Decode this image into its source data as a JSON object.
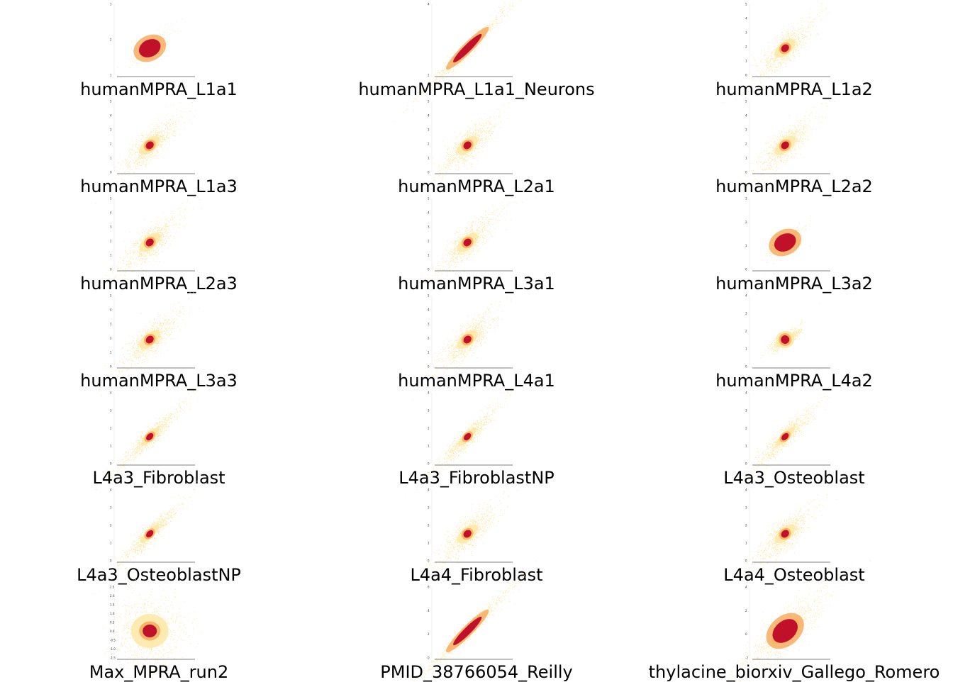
{
  "figure": {
    "colors": {
      "outer": "#fde8a6",
      "mid": "#f6a857",
      "core": "#c0102a",
      "axis": "#222222"
    }
  },
  "chart_data": [
    {
      "type": "scatter",
      "title": "humanMPRA_L1a1",
      "style": "blob",
      "yticks": [
        "1",
        "2",
        "3"
      ]
    },
    {
      "type": "scatter",
      "title": "humanMPRA_L1a1_Neurons",
      "style": "diagonal",
      "yticks": [
        "2",
        "4"
      ]
    },
    {
      "type": "scatter",
      "title": "humanMPRA_L1a2",
      "style": "wide",
      "yticks": [
        "0",
        "1",
        "2",
        "3",
        "4",
        "5"
      ]
    },
    {
      "type": "scatter",
      "title": "humanMPRA_L1a3",
      "style": "wide",
      "yticks": [
        "0",
        "1",
        "2",
        "3",
        "4",
        "5"
      ]
    },
    {
      "type": "scatter",
      "title": "humanMPRA_L2a1",
      "style": "wide",
      "yticks": [
        "0",
        "1",
        "2",
        "3",
        "4",
        "5"
      ]
    },
    {
      "type": "scatter",
      "title": "humanMPRA_L2a2",
      "style": "wide",
      "yticks": [
        "0",
        "1",
        "2",
        "3",
        "4",
        "5"
      ]
    },
    {
      "type": "scatter",
      "title": "humanMPRA_L2a3",
      "style": "wide",
      "yticks": [
        "0",
        "1",
        "2",
        "3",
        "4",
        "5"
      ]
    },
    {
      "type": "scatter",
      "title": "humanMPRA_L3a1",
      "style": "wide",
      "yticks": [
        "0",
        "1",
        "2",
        "3",
        "4",
        "5"
      ]
    },
    {
      "type": "scatter",
      "title": "humanMPRA_L3a2",
      "style": "blob",
      "yticks": [
        "0",
        "1",
        "2",
        "3"
      ]
    },
    {
      "type": "scatter",
      "title": "humanMPRA_L3a3",
      "style": "wide",
      "yticks": [
        "0",
        "1",
        "2",
        "3",
        "4",
        "5"
      ]
    },
    {
      "type": "scatter",
      "title": "humanMPRA_L4a1",
      "style": "wide",
      "yticks": [
        "0",
        "1",
        "2",
        "3",
        "4",
        "5"
      ]
    },
    {
      "type": "scatter",
      "title": "humanMPRA_L4a2",
      "style": "round",
      "yticks": [
        "0",
        "1",
        "2",
        "3",
        "4"
      ]
    },
    {
      "type": "scatter",
      "title": "L4a3_Fibroblast",
      "style": "narrow",
      "yticks": [
        "0",
        "1",
        "2",
        "3",
        "4"
      ]
    },
    {
      "type": "scatter",
      "title": "L4a3_FibroblastNP",
      "style": "narrow",
      "yticks": [
        "0",
        "1",
        "2",
        "3",
        "4"
      ]
    },
    {
      "type": "scatter",
      "title": "L4a3_Osteoblast",
      "style": "narrow",
      "yticks": [
        "0",
        "1",
        "2",
        "3",
        "4"
      ]
    },
    {
      "type": "scatter",
      "title": "L4a3_OsteoblastNP",
      "style": "narrow",
      "yticks": [
        "0",
        "1",
        "2",
        "3",
        "4"
      ]
    },
    {
      "type": "scatter",
      "title": "L4a4_Fibroblast",
      "style": "wide",
      "yticks": [
        "0",
        "1",
        "2",
        "3",
        "4"
      ]
    },
    {
      "type": "scatter",
      "title": "L4a4_Osteoblast",
      "style": "wide",
      "yticks": [
        "0",
        "1",
        "2",
        "3",
        "4"
      ]
    },
    {
      "type": "scatter",
      "title": "Max_MPRA_run2",
      "style": "square",
      "yticks": [
        "-1.5",
        "-1.0",
        "-0.5",
        "0.0",
        "0.5",
        "1.0",
        "1.5",
        "2.0",
        "2.5"
      ]
    },
    {
      "type": "scatter",
      "title": "PMID_38766054_Reilly",
      "style": "diagonal",
      "yticks": [
        "0",
        "2",
        "4",
        "6"
      ]
    },
    {
      "type": "scatter",
      "title": "thylacine_biorxiv_Gallego_Romero",
      "style": "big",
      "yticks": [
        "-2",
        "0",
        "2",
        "4"
      ]
    }
  ]
}
